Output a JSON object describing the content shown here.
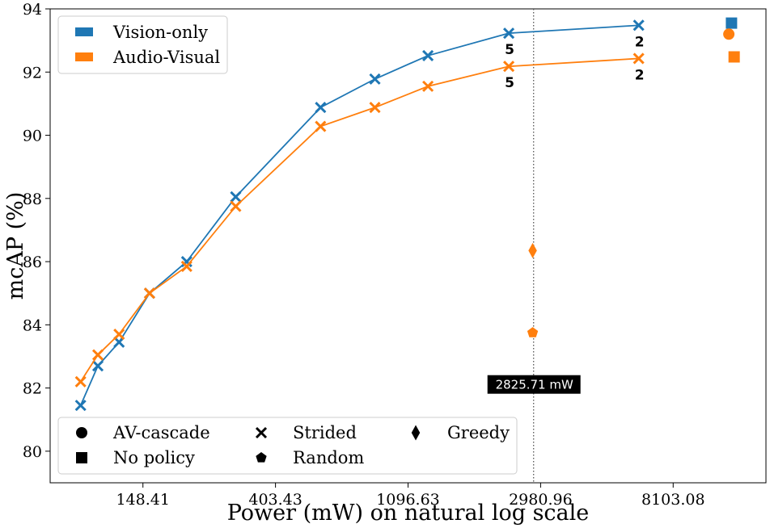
{
  "chart_data": {
    "type": "line",
    "xlabel": "Power (mW) on natural log scale",
    "ylabel": "mcAP (%)",
    "x_scale": "ln",
    "xlim_ln": [
      4.3,
      9.7
    ],
    "ylim": [
      79.0,
      94.0
    ],
    "x_ticks": [
      {
        "ln": 5.0,
        "label": "148.41"
      },
      {
        "ln": 6.0,
        "label": "403.43"
      },
      {
        "ln": 7.0,
        "label": "1096.63"
      },
      {
        "ln": 8.0,
        "label": "2980.96"
      },
      {
        "ln": 9.0,
        "label": "8103.08"
      }
    ],
    "y_ticks": [
      80,
      82,
      84,
      86,
      88,
      90,
      92,
      94
    ],
    "colors": {
      "vision": "#1f77b4",
      "audio_visual": "#ff7f0e"
    },
    "series": [
      {
        "name": "Vision-only",
        "color_key": "vision",
        "marker": "x",
        "x_ln": [
          4.53,
          4.66,
          4.82,
          5.05,
          5.33,
          5.7,
          6.34,
          6.75,
          7.15,
          7.76,
          8.74
        ],
        "values": [
          81.45,
          82.7,
          83.45,
          85.0,
          86.0,
          88.05,
          90.88,
          91.78,
          92.52,
          93.23,
          93.48
        ]
      },
      {
        "name": "Audio-Visual",
        "color_key": "audio_visual",
        "marker": "x",
        "x_ln": [
          4.53,
          4.66,
          4.82,
          5.05,
          5.33,
          5.7,
          6.34,
          6.75,
          7.15,
          7.76,
          8.74
        ],
        "values": [
          82.2,
          83.05,
          83.7,
          85.0,
          85.85,
          87.75,
          90.28,
          90.88,
          91.55,
          92.18,
          92.43
        ]
      }
    ],
    "extra_points": [
      {
        "name": "Vision-only no policy",
        "marker": "square",
        "color_key": "vision",
        "x_ln": 9.44,
        "value": 93.55
      },
      {
        "name": "AV-cascade",
        "marker": "circle",
        "color_key": "audio_visual",
        "x_ln": 9.42,
        "value": 93.2
      },
      {
        "name": "Audio-Visual no policy",
        "marker": "square",
        "color_key": "audio_visual",
        "x_ln": 9.46,
        "value": 92.48
      },
      {
        "name": "Greedy",
        "marker": "diamond",
        "color_key": "audio_visual",
        "x_ln": 7.94,
        "value": 86.35
      },
      {
        "name": "Random",
        "marker": "pentagon",
        "color_key": "audio_visual",
        "x_ln": 7.94,
        "value": 83.75
      }
    ],
    "point_labels": [
      {
        "text": "5",
        "series": 0,
        "index": 9
      },
      {
        "text": "2",
        "series": 0,
        "index": 10
      },
      {
        "text": "5",
        "series": 1,
        "index": 9
      },
      {
        "text": "2",
        "series": 1,
        "index": 10
      }
    ],
    "vline": {
      "x_ln": 7.947,
      "label": "2825.71 mW",
      "label_y": 82.1
    },
    "legend_series": {
      "position": "top-left",
      "entries": [
        {
          "label": "Vision-only",
          "color_key": "vision"
        },
        {
          "label": "Audio-Visual",
          "color_key": "audio_visual"
        }
      ]
    },
    "legend_markers": {
      "position": "bottom-left",
      "entries": [
        {
          "label": "AV-cascade",
          "marker": "circle"
        },
        {
          "label": "No policy",
          "marker": "square"
        },
        {
          "label": "Strided",
          "marker": "x"
        },
        {
          "label": "Random",
          "marker": "pentagon"
        },
        {
          "label": "Greedy",
          "marker": "diamond"
        }
      ]
    }
  }
}
